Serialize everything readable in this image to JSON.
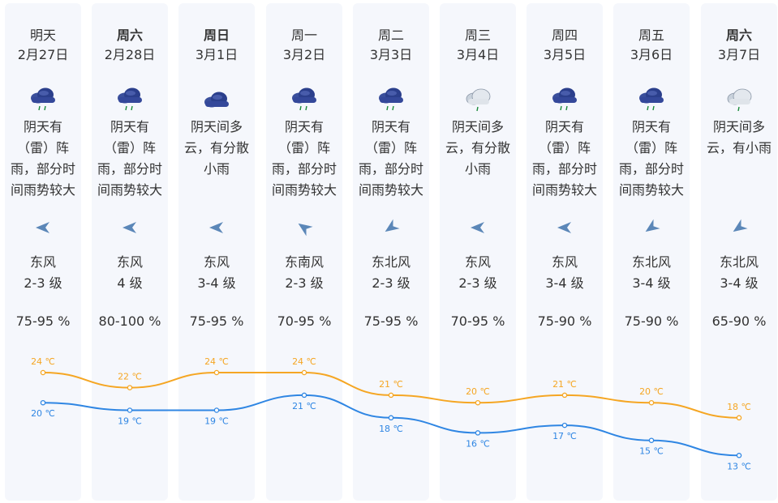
{
  "colors": {
    "high": "#f5a623",
    "low": "#2f86e3",
    "arrow": "#5b87b8",
    "cloud_dark": "#2b3f8c",
    "cloud_light": "#c9d2dc",
    "rain": "#1a8a3a"
  },
  "days": [
    {
      "name": "明天",
      "bold": false,
      "date": "2月27日",
      "icon": "rain-cloud-icon",
      "desc": "阴天有（雷）阵雨，部分时间雨势较大",
      "wind_dir": "东风",
      "wind_angle": 180,
      "wind_level": "2-3 级",
      "humidity": "75-95 %"
    },
    {
      "name": "周六",
      "bold": true,
      "date": "2月28日",
      "icon": "rain-cloud-icon",
      "desc": "阴天有（雷）阵雨，部分时间雨势较大",
      "wind_dir": "东风",
      "wind_angle": 180,
      "wind_level": "4 级",
      "humidity": "80-100 %"
    },
    {
      "name": "周日",
      "bold": true,
      "date": "3月1日",
      "icon": "cloud-icon",
      "desc": "阴天间多云，有分散小雨",
      "wind_dir": "东风",
      "wind_angle": 180,
      "wind_level": "3-4 级",
      "humidity": "75-95 %"
    },
    {
      "name": "周一",
      "bold": false,
      "date": "3月2日",
      "icon": "rain-cloud-icon",
      "desc": "阴天有（雷）阵雨，部分时间雨势较大",
      "wind_dir": "东南风",
      "wind_angle": 215,
      "wind_level": "2-3 级",
      "humidity": "70-95 %"
    },
    {
      "name": "周二",
      "bold": false,
      "date": "3月3日",
      "icon": "rain-cloud-icon",
      "desc": "阴天有（雷）阵雨，部分时间雨势较大",
      "wind_dir": "东北风",
      "wind_angle": 145,
      "wind_level": "2-3 级",
      "humidity": "75-95 %"
    },
    {
      "name": "周三",
      "bold": false,
      "date": "3月4日",
      "icon": "light-rain-cloud-icon",
      "desc": "阴天间多云，有分散小雨",
      "wind_dir": "东风",
      "wind_angle": 180,
      "wind_level": "2-3 级",
      "humidity": "70-95 %"
    },
    {
      "name": "周四",
      "bold": false,
      "date": "3月5日",
      "icon": "rain-cloud-icon",
      "desc": "阴天有（雷）阵雨，部分时间雨势较大",
      "wind_dir": "东风",
      "wind_angle": 180,
      "wind_level": "3-4 级",
      "humidity": "75-90 %"
    },
    {
      "name": "周五",
      "bold": false,
      "date": "3月6日",
      "icon": "rain-cloud-icon",
      "desc": "阴天有（雷）阵雨，部分时间雨势较大",
      "wind_dir": "东北风",
      "wind_angle": 145,
      "wind_level": "3-4 级",
      "humidity": "75-90 %"
    },
    {
      "name": "周六",
      "bold": true,
      "date": "3月7日",
      "icon": "light-rain-cloud-icon",
      "desc": "阴天间多云，有小雨",
      "wind_dir": "东北风",
      "wind_angle": 145,
      "wind_level": "3-4 级",
      "humidity": "65-90 %"
    }
  ],
  "temperature": {
    "high": [
      24,
      22,
      24,
      24,
      21,
      20,
      21,
      20,
      18
    ],
    "low": [
      20,
      19,
      19,
      21,
      18,
      16,
      17,
      15,
      13
    ],
    "high_labels": [
      "24 ℃",
      "22 ℃",
      "24 ℃",
      "24 ℃",
      "21 ℃",
      "20 ℃",
      "21 ℃",
      "20 ℃",
      "18 ℃"
    ],
    "low_labels": [
      "20 ℃",
      "19 ℃",
      "19 ℃",
      "21 ℃",
      "18 ℃",
      "16 ℃",
      "17 ℃",
      "15 ℃",
      "13 ℃"
    ]
  }
}
